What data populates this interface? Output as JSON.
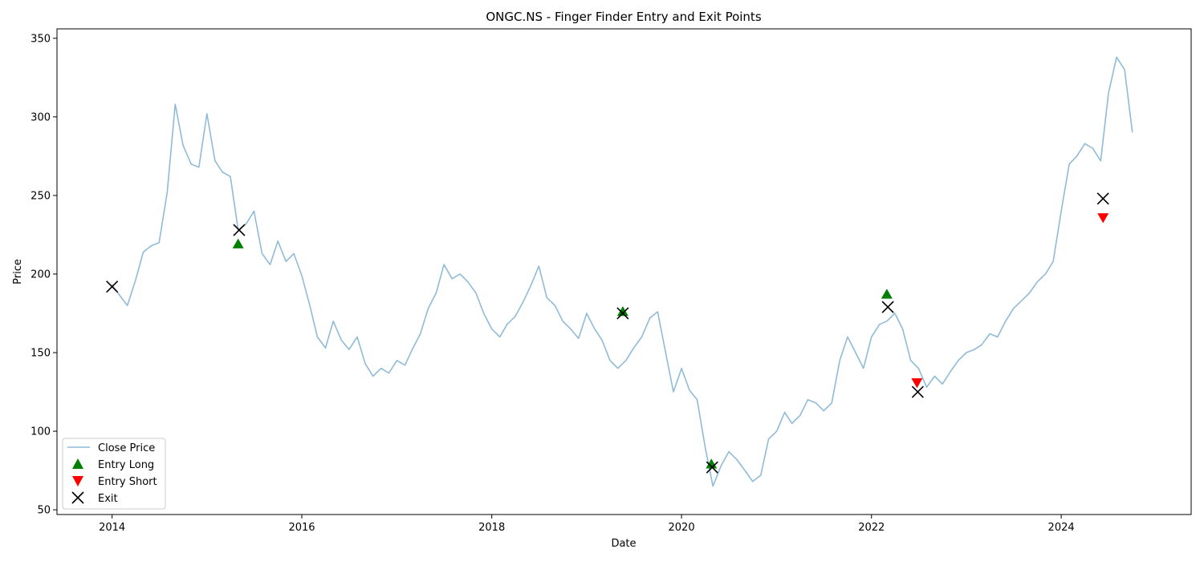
{
  "chart_data": {
    "type": "line",
    "title": "ONGC.NS - Finger Finder Entry and Exit Points",
    "xlabel": "Date",
    "ylabel": "Price",
    "xlim": [
      "2013-06-03",
      "2025-05-15"
    ],
    "ylim": [
      47,
      356
    ],
    "x_ticks": [
      "2014",
      "2016",
      "2018",
      "2020",
      "2022",
      "2024"
    ],
    "y_ticks": [
      50,
      100,
      150,
      200,
      250,
      300,
      350
    ],
    "grid": false,
    "legend_position": "lower-left",
    "colors": {
      "close": "#1f77b4",
      "entry_long": "#008000",
      "entry_short": "#ff0000",
      "exit": "#000000"
    },
    "series": [
      {
        "name": "Close Price",
        "style": "line",
        "points": [
          [
            "2014-01-01",
            193
          ],
          [
            "2014-02-01",
            186
          ],
          [
            "2014-03-01",
            180
          ],
          [
            "2014-04-01",
            196
          ],
          [
            "2014-05-01",
            214
          ],
          [
            "2014-06-01",
            218
          ],
          [
            "2014-07-01",
            220
          ],
          [
            "2014-08-01",
            252
          ],
          [
            "2014-09-01",
            308
          ],
          [
            "2014-10-01",
            282
          ],
          [
            "2014-11-01",
            270
          ],
          [
            "2014-12-01",
            268
          ],
          [
            "2015-01-01",
            302
          ],
          [
            "2015-02-01",
            272
          ],
          [
            "2015-03-01",
            265
          ],
          [
            "2015-04-01",
            262
          ],
          [
            "2015-05-01",
            228
          ],
          [
            "2015-06-01",
            232
          ],
          [
            "2015-07-01",
            240
          ],
          [
            "2015-08-01",
            213
          ],
          [
            "2015-09-01",
            206
          ],
          [
            "2015-10-01",
            221
          ],
          [
            "2015-11-01",
            208
          ],
          [
            "2015-12-01",
            213
          ],
          [
            "2016-01-01",
            199
          ],
          [
            "2016-02-01",
            180
          ],
          [
            "2016-03-01",
            160
          ],
          [
            "2016-04-01",
            153
          ],
          [
            "2016-05-01",
            170
          ],
          [
            "2016-06-01",
            158
          ],
          [
            "2016-07-01",
            152
          ],
          [
            "2016-08-01",
            160
          ],
          [
            "2016-09-01",
            143
          ],
          [
            "2016-10-01",
            135
          ],
          [
            "2016-11-01",
            140
          ],
          [
            "2016-12-01",
            137
          ],
          [
            "2017-01-01",
            145
          ],
          [
            "2017-02-01",
            142
          ],
          [
            "2017-03-01",
            152
          ],
          [
            "2017-04-01",
            162
          ],
          [
            "2017-05-01",
            178
          ],
          [
            "2017-06-01",
            188
          ],
          [
            "2017-07-01",
            206
          ],
          [
            "2017-08-01",
            197
          ],
          [
            "2017-09-01",
            200
          ],
          [
            "2017-10-01",
            195
          ],
          [
            "2017-11-01",
            188
          ],
          [
            "2017-12-01",
            175
          ],
          [
            "2018-01-01",
            165
          ],
          [
            "2018-02-01",
            160
          ],
          [
            "2018-03-01",
            168
          ],
          [
            "2018-04-01",
            173
          ],
          [
            "2018-05-01",
            182
          ],
          [
            "2018-06-01",
            193
          ],
          [
            "2018-07-01",
            205
          ],
          [
            "2018-08-01",
            185
          ],
          [
            "2018-09-01",
            180
          ],
          [
            "2018-10-01",
            170
          ],
          [
            "2018-11-01",
            165
          ],
          [
            "2018-12-01",
            159
          ],
          [
            "2019-01-01",
            175
          ],
          [
            "2019-02-01",
            165
          ],
          [
            "2019-03-01",
            158
          ],
          [
            "2019-04-01",
            145
          ],
          [
            "2019-05-01",
            140
          ],
          [
            "2019-06-01",
            145
          ],
          [
            "2019-07-01",
            153
          ],
          [
            "2019-08-01",
            160
          ],
          [
            "2019-09-01",
            172
          ],
          [
            "2019-10-01",
            176
          ],
          [
            "2019-11-01",
            150
          ],
          [
            "2019-12-01",
            125
          ],
          [
            "2020-01-01",
            140
          ],
          [
            "2020-02-01",
            126
          ],
          [
            "2020-03-01",
            120
          ],
          [
            "2020-04-01",
            90
          ],
          [
            "2020-05-01",
            65
          ],
          [
            "2020-06-01",
            78
          ],
          [
            "2020-07-01",
            87
          ],
          [
            "2020-08-01",
            82
          ],
          [
            "2020-09-01",
            75
          ],
          [
            "2020-10-01",
            68
          ],
          [
            "2020-11-01",
            72
          ],
          [
            "2020-12-01",
            95
          ],
          [
            "2021-01-01",
            100
          ],
          [
            "2021-02-01",
            112
          ],
          [
            "2021-03-01",
            105
          ],
          [
            "2021-04-01",
            110
          ],
          [
            "2021-05-01",
            120
          ],
          [
            "2021-06-01",
            118
          ],
          [
            "2021-07-01",
            113
          ],
          [
            "2021-08-01",
            118
          ],
          [
            "2021-09-01",
            145
          ],
          [
            "2021-10-01",
            160
          ],
          [
            "2021-11-01",
            150
          ],
          [
            "2021-12-01",
            140
          ],
          [
            "2022-01-01",
            160
          ],
          [
            "2022-02-01",
            168
          ],
          [
            "2022-03-01",
            170
          ],
          [
            "2022-04-01",
            175
          ],
          [
            "2022-05-01",
            165
          ],
          [
            "2022-06-01",
            145
          ],
          [
            "2022-07-01",
            140
          ],
          [
            "2022-08-01",
            128
          ],
          [
            "2022-09-01",
            135
          ],
          [
            "2022-10-01",
            130
          ],
          [
            "2022-11-01",
            138
          ],
          [
            "2022-12-01",
            145
          ],
          [
            "2023-01-01",
            150
          ],
          [
            "2023-02-01",
            152
          ],
          [
            "2023-03-01",
            155
          ],
          [
            "2023-04-01",
            162
          ],
          [
            "2023-05-01",
            160
          ],
          [
            "2023-06-01",
            170
          ],
          [
            "2023-07-01",
            178
          ],
          [
            "2023-08-01",
            183
          ],
          [
            "2023-09-01",
            188
          ],
          [
            "2023-10-01",
            195
          ],
          [
            "2023-11-01",
            200
          ],
          [
            "2023-12-01",
            208
          ],
          [
            "2024-01-01",
            240
          ],
          [
            "2024-02-01",
            270
          ],
          [
            "2024-03-01",
            275
          ],
          [
            "2024-04-01",
            283
          ],
          [
            "2024-05-01",
            280
          ],
          [
            "2024-06-01",
            272
          ],
          [
            "2024-07-01",
            315
          ],
          [
            "2024-08-01",
            338
          ],
          [
            "2024-09-01",
            330
          ],
          [
            "2024-10-01",
            290
          ]
        ]
      },
      {
        "name": "Entry Long",
        "style": "marker",
        "marker": "triangle-up",
        "points": [
          [
            "2015-05-01",
            219
          ],
          [
            "2019-05-20",
            176
          ],
          [
            "2020-04-25",
            79
          ],
          [
            "2022-03-01",
            187
          ]
        ]
      },
      {
        "name": "Entry Short",
        "style": "marker",
        "marker": "triangle-down",
        "points": [
          [
            "2022-06-25",
            131
          ],
          [
            "2024-06-10",
            236
          ]
        ]
      },
      {
        "name": "Exit",
        "style": "marker",
        "marker": "x",
        "points": [
          [
            "2014-01-01",
            192
          ],
          [
            "2015-05-05",
            228
          ],
          [
            "2019-05-20",
            175
          ],
          [
            "2020-04-28",
            77
          ],
          [
            "2022-03-05",
            179
          ],
          [
            "2022-06-28",
            125
          ],
          [
            "2024-06-10",
            248
          ]
        ]
      }
    ]
  }
}
